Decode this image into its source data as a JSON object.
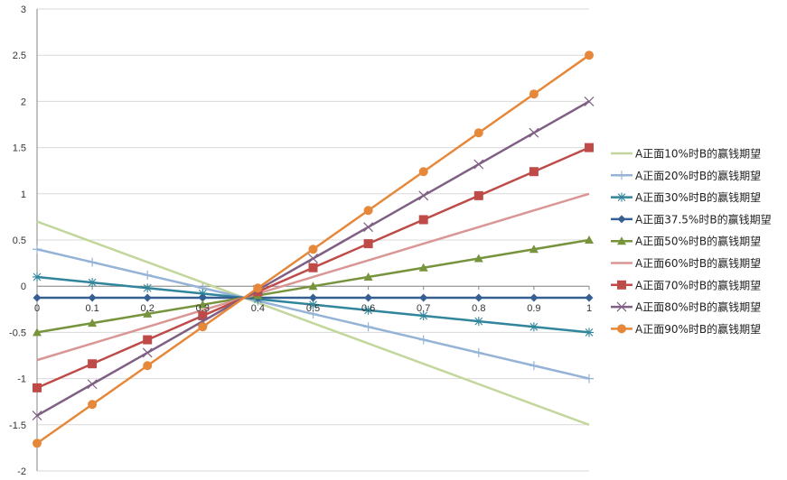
{
  "chart_data": {
    "type": "line",
    "title": "",
    "xlabel": "",
    "ylabel": "",
    "x": [
      0,
      0.1,
      0.2,
      0.3,
      0.4,
      0.5,
      0.6,
      0.7,
      0.8,
      0.9,
      1
    ],
    "xlim": [
      0,
      1
    ],
    "ylim": [
      -2,
      3
    ],
    "x_ticks": [
      "0",
      "0.1",
      "0.2",
      "0.3",
      "0.4",
      "0.5",
      "0.6",
      "0.7",
      "0.8",
      "0.9",
      "1"
    ],
    "y_ticks": [
      "-2",
      "-1.5",
      "-1",
      "-0.5",
      "0",
      "0.5",
      "1",
      "1.5",
      "2",
      "2.5",
      "3"
    ],
    "grid": "horizontal",
    "legend_position": "right",
    "series": [
      {
        "name": "A正面10%时B的赢钱期望",
        "color": "#c3d69b",
        "marker": "none",
        "values": [
          0.7,
          0.48,
          0.26,
          0.04,
          -0.18,
          -0.4,
          -0.62,
          -0.84,
          -1.06,
          -1.28,
          -1.5
        ]
      },
      {
        "name": "A正面20%时B的赢钱期望",
        "color": "#95b3d7",
        "marker": "plus",
        "values": [
          0.4,
          0.26,
          0.12,
          -0.02,
          -0.16,
          -0.3,
          -0.44,
          -0.58,
          -0.72,
          -0.86,
          -1.0
        ]
      },
      {
        "name": "A正面30%时B的赢钱期望",
        "color": "#31859c",
        "marker": "asterisk",
        "values": [
          0.1,
          0.04,
          -0.02,
          -0.08,
          -0.14,
          -0.2,
          -0.26,
          -0.32,
          -0.38,
          -0.44,
          -0.5
        ]
      },
      {
        "name": "A正面37.5%时B的赢钱期望",
        "color": "#366092",
        "marker": "diamond",
        "values": [
          -0.125,
          -0.125,
          -0.125,
          -0.125,
          -0.125,
          -0.125,
          -0.125,
          -0.125,
          -0.125,
          -0.125,
          -0.125
        ]
      },
      {
        "name": "A正面50%时B的赢钱期望",
        "color": "#77933c",
        "marker": "triangle",
        "values": [
          -0.5,
          -0.4,
          -0.3,
          -0.2,
          -0.1,
          0.0,
          0.1,
          0.2,
          0.3,
          0.4,
          0.5
        ]
      },
      {
        "name": "A正面60%时B的赢钱期望",
        "color": "#d99694",
        "marker": "none",
        "values": [
          -0.8,
          -0.62,
          -0.44,
          -0.26,
          -0.08,
          0.1,
          0.28,
          0.46,
          0.64,
          0.82,
          1.0
        ]
      },
      {
        "name": "A正面70%时B的赢钱期望",
        "color": "#be4b48",
        "marker": "square",
        "values": [
          -1.1,
          -0.84,
          -0.58,
          -0.32,
          -0.06,
          0.2,
          0.46,
          0.72,
          0.98,
          1.24,
          1.5
        ]
      },
      {
        "name": "A正面80%时B的赢钱期望",
        "color": "#7f6084",
        "marker": "x",
        "values": [
          -1.4,
          -1.06,
          -0.72,
          -0.38,
          -0.04,
          0.3,
          0.64,
          0.98,
          1.32,
          1.66,
          2.0
        ]
      },
      {
        "name": "A正面90%时B的赢钱期望",
        "color": "#e6883a",
        "marker": "circle",
        "values": [
          -1.7,
          -1.28,
          -0.86,
          -0.44,
          -0.02,
          0.4,
          0.82,
          1.24,
          1.66,
          2.08,
          2.5
        ]
      }
    ]
  }
}
